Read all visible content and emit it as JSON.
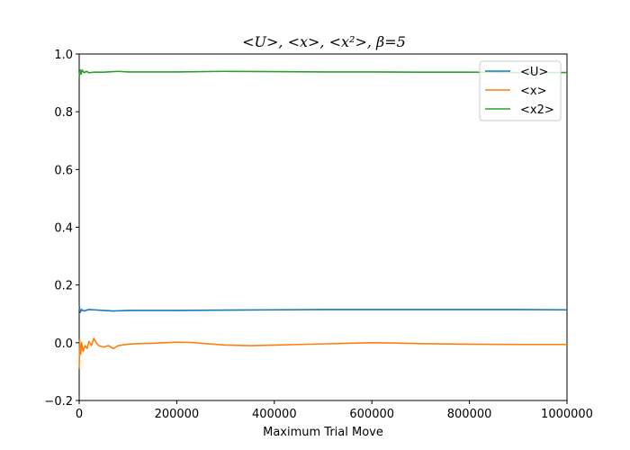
{
  "chart_data": {
    "type": "line",
    "title": "<U>, <x>, <x²>, β=5",
    "xlabel": "Maximum Trial Move",
    "ylabel": "",
    "xlim": [
      0,
      1000000
    ],
    "ylim": [
      -0.2,
      1.0
    ],
    "xticks": [
      0,
      200000,
      400000,
      600000,
      800000,
      1000000
    ],
    "xtick_labels": [
      "0",
      "200000",
      "400000",
      "600000",
      "800000",
      "1000000"
    ],
    "yticks": [
      -0.2,
      0.0,
      0.2,
      0.4,
      0.6,
      0.8,
      1.0
    ],
    "ytick_labels": [
      "−0.2",
      "0.0",
      "0.2",
      "0.4",
      "0.6",
      "0.8",
      "1.0"
    ],
    "grid": false,
    "legend_position": "top-right",
    "series": [
      {
        "name": "<U>",
        "color": "#1f77b4",
        "x": [
          0,
          2000,
          5000,
          10000,
          20000,
          30000,
          50000,
          70000,
          100000,
          150000,
          200000,
          300000,
          400000,
          500000,
          600000,
          700000,
          800000,
          900000,
          1000000
        ],
        "y": [
          0.13,
          0.105,
          0.115,
          0.11,
          0.115,
          0.114,
          0.112,
          0.11,
          0.112,
          0.112,
          0.112,
          0.113,
          0.114,
          0.115,
          0.115,
          0.115,
          0.115,
          0.115,
          0.114
        ]
      },
      {
        "name": "<x>",
        "color": "#ff7f0e",
        "x": [
          0,
          1000,
          3000,
          5000,
          8000,
          12000,
          16000,
          20000,
          25000,
          30000,
          35000,
          40000,
          50000,
          60000,
          70000,
          80000,
          100000,
          120000,
          150000,
          200000,
          230000,
          260000,
          300000,
          350000,
          400000,
          450000,
          500000,
          550000,
          600000,
          650000,
          700000,
          800000,
          900000,
          1000000
        ],
        "y": [
          -0.09,
          0.01,
          -0.04,
          0.0,
          -0.03,
          -0.01,
          -0.02,
          0.005,
          -0.01,
          0.015,
          0.0,
          -0.01,
          -0.015,
          -0.01,
          -0.02,
          -0.01,
          -0.005,
          -0.003,
          -0.002,
          0.002,
          0.001,
          -0.003,
          -0.008,
          -0.01,
          -0.008,
          -0.006,
          -0.004,
          -0.002,
          0.0,
          -0.001,
          -0.003,
          -0.005,
          -0.006,
          -0.006
        ]
      },
      {
        "name": "<x2>",
        "color": "#2ca02c",
        "x": [
          0,
          2000,
          4000,
          6000,
          10000,
          15000,
          20000,
          30000,
          50000,
          80000,
          100000,
          150000,
          200000,
          300000,
          400000,
          500000,
          600000,
          700000,
          800000,
          900000,
          1000000
        ],
        "y": [
          0.92,
          0.945,
          0.93,
          0.945,
          0.935,
          0.94,
          0.935,
          0.937,
          0.937,
          0.94,
          0.938,
          0.938,
          0.938,
          0.94,
          0.939,
          0.938,
          0.938,
          0.937,
          0.937,
          0.936,
          0.936
        ]
      }
    ]
  }
}
